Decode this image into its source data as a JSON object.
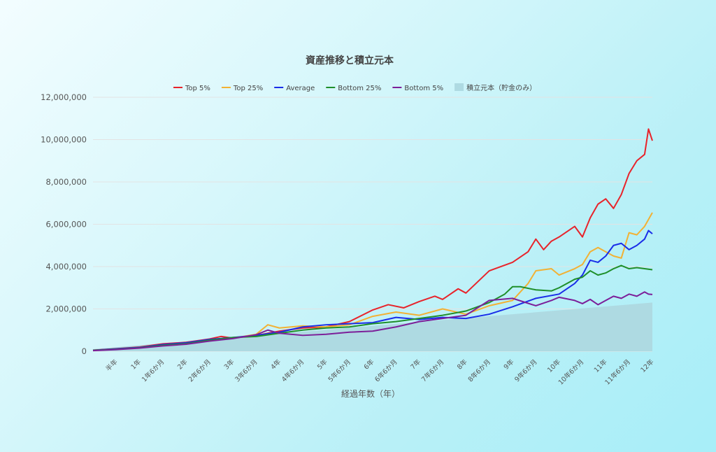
{
  "chart_data": {
    "type": "line",
    "title": "資産推移と積立元本",
    "xlabel": "経過年数（年）",
    "ylabel": "",
    "ylim": [
      0,
      12000000
    ],
    "yticks": [
      "0",
      "2,000,000",
      "4,000,000",
      "6,000,000",
      "8,000,000",
      "10,000,000",
      "12,000,000"
    ],
    "xticks": [
      "半年",
      "1年",
      "1年6か月",
      "2年",
      "2年6か月",
      "3年",
      "3年6か月",
      "4年",
      "4年6か月",
      "5年",
      "5年6か月",
      "6年",
      "6年6か月",
      "7年",
      "7年6か月",
      "8年",
      "8年6か月",
      "9年",
      "9年6か月",
      "10年",
      "10年6か月",
      "11年",
      "11年6か月",
      "12年"
    ],
    "xticks_month": [
      6,
      12,
      18,
      24,
      30,
      36,
      42,
      48,
      54,
      60,
      66,
      72,
      78,
      84,
      90,
      96,
      102,
      108,
      114,
      120,
      126,
      132,
      138,
      144
    ],
    "x_months_range": [
      0,
      144
    ],
    "grid": true,
    "legend_position": "top-center",
    "series": [
      {
        "name": "Top 5%",
        "color": "#e8232a",
        "months": [
          0,
          6,
          12,
          18,
          24,
          30,
          33,
          36,
          42,
          48,
          54,
          60,
          66,
          72,
          76,
          80,
          84,
          88,
          90,
          94,
          96,
          102,
          108,
          112,
          114,
          116,
          118,
          120,
          124,
          126,
          128,
          130,
          132,
          134,
          136,
          138,
          140,
          142,
          143,
          144
        ],
        "values": [
          50000,
          120000,
          200000,
          350000,
          420000,
          580000,
          700000,
          620000,
          750000,
          950000,
          1100000,
          1150000,
          1400000,
          1950000,
          2200000,
          2050000,
          2350000,
          2600000,
          2450000,
          2950000,
          2750000,
          3800000,
          4200000,
          4700000,
          5300000,
          4800000,
          5200000,
          5400000,
          5900000,
          5400000,
          6300000,
          6950000,
          7200000,
          6750000,
          7400000,
          8400000,
          9000000,
          9300000,
          10500000,
          9950000
        ]
      },
      {
        "name": "Top 25%",
        "color": "#f2b134",
        "months": [
          0,
          6,
          12,
          18,
          24,
          30,
          36,
          42,
          45,
          48,
          54,
          60,
          66,
          72,
          78,
          84,
          90,
          96,
          102,
          108,
          112,
          114,
          118,
          120,
          124,
          126,
          128,
          130,
          132,
          134,
          136,
          138,
          140,
          142,
          144
        ],
        "values": [
          40000,
          100000,
          170000,
          300000,
          380000,
          500000,
          620000,
          800000,
          1250000,
          1100000,
          1200000,
          1150000,
          1250000,
          1650000,
          1850000,
          1700000,
          2000000,
          1750000,
          2150000,
          2400000,
          3200000,
          3800000,
          3900000,
          3600000,
          3900000,
          4100000,
          4700000,
          4900000,
          4700000,
          4500000,
          4400000,
          5600000,
          5500000,
          5900000,
          6550000
        ]
      },
      {
        "name": "Average",
        "color": "#1a2de8",
        "months": [
          0,
          6,
          12,
          18,
          24,
          30,
          36,
          42,
          48,
          54,
          60,
          66,
          72,
          78,
          84,
          90,
          96,
          102,
          108,
          114,
          120,
          124,
          126,
          128,
          130,
          132,
          134,
          136,
          138,
          140,
          142,
          143,
          144
        ],
        "values": [
          45000,
          110000,
          180000,
          320000,
          400000,
          560000,
          650000,
          750000,
          900000,
          1150000,
          1250000,
          1300000,
          1350000,
          1600000,
          1500000,
          1600000,
          1550000,
          1750000,
          2100000,
          2500000,
          2700000,
          3200000,
          3600000,
          4300000,
          4200000,
          4500000,
          5000000,
          5100000,
          4800000,
          5000000,
          5300000,
          5700000,
          5550000
        ]
      },
      {
        "name": "Bottom 25%",
        "color": "#1f8f2a",
        "months": [
          0,
          6,
          12,
          18,
          24,
          30,
          36,
          42,
          48,
          54,
          60,
          66,
          72,
          78,
          84,
          90,
          96,
          102,
          106,
          108,
          110,
          114,
          118,
          120,
          124,
          126,
          128,
          130,
          132,
          134,
          136,
          138,
          140,
          142,
          144
        ],
        "values": [
          40000,
          90000,
          160000,
          280000,
          360000,
          520000,
          650000,
          700000,
          850000,
          1000000,
          1100000,
          1150000,
          1300000,
          1400000,
          1550000,
          1700000,
          1900000,
          2300000,
          2700000,
          3050000,
          3050000,
          2900000,
          2850000,
          3000000,
          3400000,
          3500000,
          3800000,
          3600000,
          3700000,
          3900000,
          4050000,
          3900000,
          3950000,
          3900000,
          3850000
        ]
      },
      {
        "name": "Bottom 5%",
        "color": "#7c1f99",
        "months": [
          0,
          6,
          12,
          18,
          24,
          30,
          36,
          42,
          45,
          48,
          54,
          60,
          66,
          72,
          78,
          84,
          90,
          96,
          102,
          108,
          114,
          118,
          120,
          124,
          126,
          128,
          130,
          132,
          134,
          136,
          138,
          140,
          142,
          143,
          144
        ],
        "values": [
          30000,
          80000,
          150000,
          250000,
          330000,
          480000,
          600000,
          780000,
          1000000,
          850000,
          750000,
          800000,
          900000,
          950000,
          1150000,
          1400000,
          1550000,
          1700000,
          2400000,
          2500000,
          2150000,
          2400000,
          2550000,
          2400000,
          2250000,
          2450000,
          2200000,
          2400000,
          2600000,
          2500000,
          2700000,
          2600000,
          2800000,
          2700000,
          2680000
        ]
      },
      {
        "name": "積立元本（貯金のみ）",
        "color": "#aedae2",
        "type": "area",
        "months": [
          0,
          144
        ],
        "values": [
          100000,
          2300000
        ]
      }
    ]
  }
}
